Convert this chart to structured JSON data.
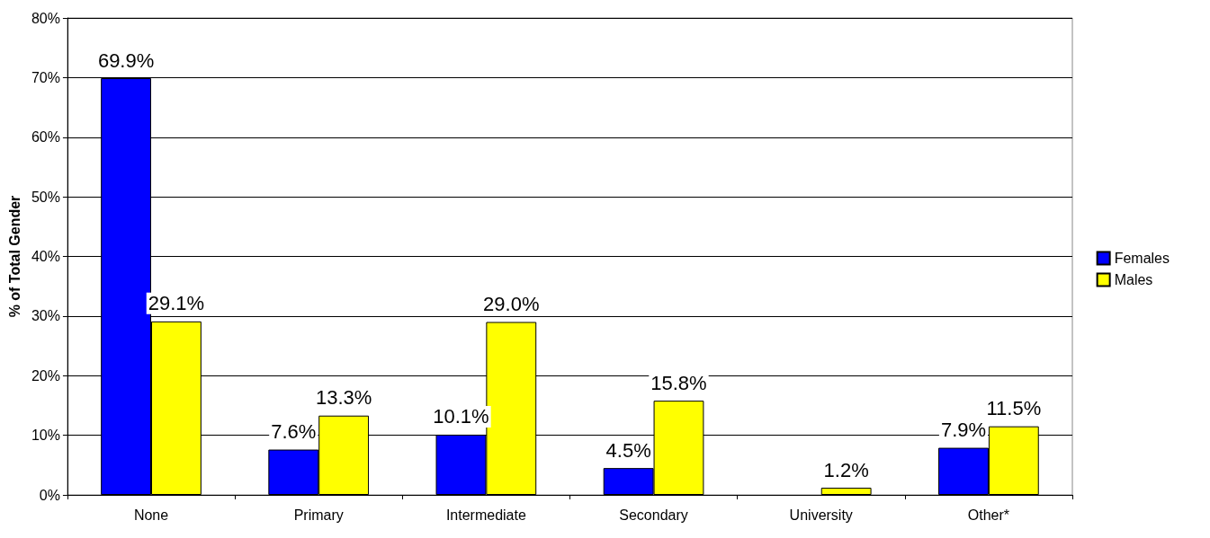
{
  "chart_data": {
    "type": "bar",
    "ylabel": "% of Total Gender",
    "categories": [
      "None",
      "Primary",
      "Intermediate",
      "Secondary",
      "University",
      "Other*"
    ],
    "series": [
      {
        "name": "Females",
        "color": "#0000ff",
        "values": [
          69.9,
          7.6,
          10.1,
          4.5,
          0,
          7.9
        ],
        "value_labels": [
          "69.9%",
          "7.6%",
          "10.1%",
          "4.5%",
          null,
          "7.9%"
        ]
      },
      {
        "name": "Males",
        "color": "#ffff00",
        "values": [
          29.1,
          13.3,
          29.0,
          15.8,
          1.2,
          11.5
        ],
        "value_labels": [
          "29.1%",
          "13.3%",
          "29.0%",
          "15.8%",
          "1.2%",
          "11.5%"
        ]
      }
    ],
    "ylim": [
      0,
      80
    ],
    "yticks": [
      {
        "value": 0,
        "label": "0%"
      },
      {
        "value": 10,
        "label": "10%"
      },
      {
        "value": 20,
        "label": "20%"
      },
      {
        "value": 30,
        "label": "30%"
      },
      {
        "value": 40,
        "label": "40%"
      },
      {
        "value": 50,
        "label": "50%"
      },
      {
        "value": 60,
        "label": "60%"
      },
      {
        "value": 70,
        "label": "70%"
      },
      {
        "value": 80,
        "label": "80%"
      }
    ],
    "grid": "y",
    "legend": "right"
  }
}
